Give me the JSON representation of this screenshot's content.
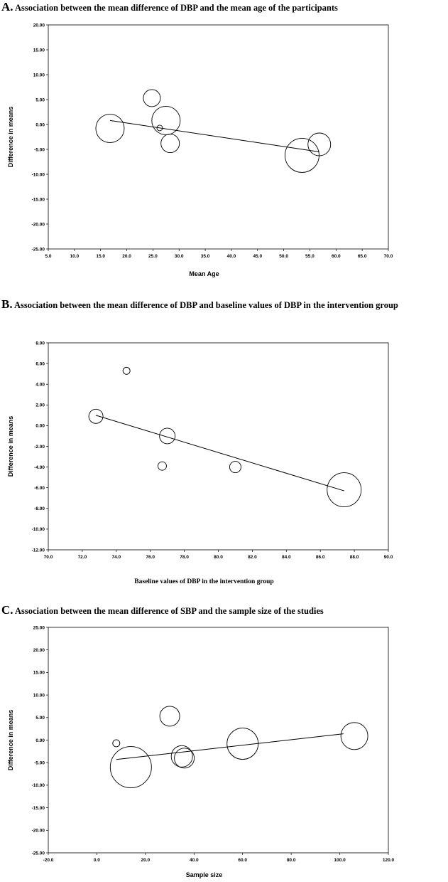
{
  "panels": [
    {
      "letter": "A.",
      "title": "Association between the mean difference of DBP and the mean age of the participants"
    },
    {
      "letter": "B.",
      "title": "Association between the mean difference of DBP and baseline values of DBP in the intervention group"
    },
    {
      "letter": "C.",
      "title": "Association between the mean difference of SBP and the sample size of the studies"
    }
  ],
  "chart_data": [
    {
      "type": "scatter",
      "title": "Association between the mean difference of DBP and the mean age of the participants",
      "xlabel": "Mean Age",
      "ylabel": "Difference in means",
      "xlim": [
        5,
        70
      ],
      "ylim": [
        -25,
        20
      ],
      "xticks": [
        "5.0",
        "10.0",
        "15.0",
        "20.0",
        "25.0",
        "30.0",
        "35.0",
        "40.0",
        "45.0",
        "50.0",
        "55.0",
        "60.0",
        "65.0",
        "70.0"
      ],
      "yticks": [
        "20.00",
        "15.00",
        "10.00",
        "5.00",
        "0.00",
        "-5.00",
        "-10.00",
        "-15.00",
        "-20.00",
        "-25.00"
      ],
      "points": [
        {
          "x": 16.8,
          "y": -0.8,
          "weight": 20
        },
        {
          "x": 24.8,
          "y": 5.3,
          "weight": 12
        },
        {
          "x": 26.3,
          "y": -0.7,
          "weight": 4
        },
        {
          "x": 27.5,
          "y": 0.8,
          "weight": 20
        },
        {
          "x": 28.3,
          "y": -3.8,
          "weight": 13
        },
        {
          "x": 53.5,
          "y": -6.2,
          "weight": 24
        },
        {
          "x": 56.8,
          "y": -4.0,
          "weight": 16
        }
      ],
      "regression": {
        "x": [
          16.8,
          56.8
        ],
        "y": [
          0.8,
          -5.5
        ]
      }
    },
    {
      "type": "scatter",
      "title": "Association between the mean difference of DBP and baseline values of DBP in the intervention group",
      "xlabel": "Baseline values of DBP in the intervention group",
      "ylabel": "Difference in means",
      "xlim": [
        70,
        90
      ],
      "ylim": [
        -12,
        8
      ],
      "xticks": [
        "70.0",
        "72.0",
        "74.0",
        "76.0",
        "78.0",
        "80.0",
        "82.0",
        "84.0",
        "86.0",
        "88.0",
        "90.0"
      ],
      "yticks": [
        "8.00",
        "6.00",
        "4.00",
        "2.00",
        "0.00",
        "-2.00",
        "-4.00",
        "-6.00",
        "-8.00",
        "-10.00",
        "-12.00"
      ],
      "points": [
        {
          "x": 72.8,
          "y": 0.9,
          "weight": 10
        },
        {
          "x": 74.6,
          "y": 5.3,
          "weight": 5
        },
        {
          "x": 76.7,
          "y": -3.9,
          "weight": 6
        },
        {
          "x": 77.0,
          "y": -1.0,
          "weight": 11
        },
        {
          "x": 81.0,
          "y": -4.0,
          "weight": 8
        },
        {
          "x": 87.4,
          "y": -6.2,
          "weight": 24
        }
      ],
      "regression": {
        "x": [
          72.8,
          87.4
        ],
        "y": [
          1.0,
          -6.3
        ]
      }
    },
    {
      "type": "scatter",
      "title": "Association between the mean difference of SBP and the sample size of the studies",
      "xlabel": "Sample size",
      "ylabel": "Difference in means",
      "xlim": [
        -20,
        120
      ],
      "ylim": [
        -25,
        25
      ],
      "xticks": [
        "-20.0",
        "0.0",
        "20.0",
        "40.0",
        "60.0",
        "80.0",
        "100.0",
        "120.0"
      ],
      "yticks": [
        "25.00",
        "20.00",
        "15.00",
        "10.00",
        "5.00",
        "0.00",
        "-5.00",
        "-10.00",
        "-15.00",
        "-20.00",
        "-25.00"
      ],
      "points": [
        {
          "x": 8.0,
          "y": -0.7,
          "weight": 5
        },
        {
          "x": 14.0,
          "y": -6.0,
          "weight": 29
        },
        {
          "x": 30.0,
          "y": 5.3,
          "weight": 14
        },
        {
          "x": 35.0,
          "y": -3.6,
          "weight": 15
        },
        {
          "x": 36.0,
          "y": -4.0,
          "weight": 14
        },
        {
          "x": 60.0,
          "y": -0.8,
          "weight": 22
        },
        {
          "x": 106.0,
          "y": 0.9,
          "weight": 19
        }
      ],
      "regression": {
        "x": [
          8.0,
          101.5
        ],
        "y": [
          -4.3,
          1.4
        ]
      }
    }
  ]
}
